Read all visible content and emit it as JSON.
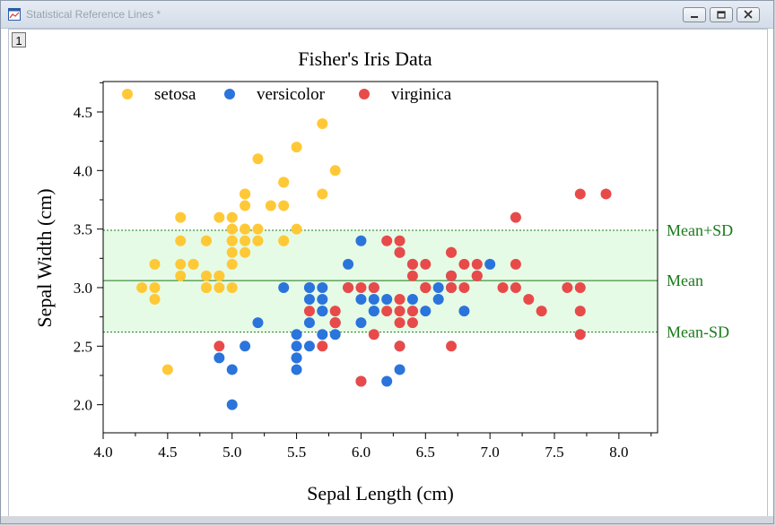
{
  "window": {
    "title": "Statistical Reference Lines *",
    "layer_label": "1",
    "icon": "graph-window-icon",
    "buttons": [
      "minimize-icon",
      "restore-icon",
      "close-icon"
    ]
  },
  "chart_data": {
    "type": "scatter",
    "title": "Fisher's Iris Data",
    "xlabel": "Sepal Length (cm)",
    "ylabel": "Sepal Width (cm)",
    "xlim": [
      4.0,
      8.3
    ],
    "ylim": [
      1.76,
      4.76
    ],
    "xticks": [
      "4.0",
      "4.5",
      "5.0",
      "5.5",
      "6.0",
      "6.5",
      "7.0",
      "7.5",
      "8.0"
    ],
    "yticks": [
      "2.0",
      "2.5",
      "3.0",
      "3.5",
      "4.0",
      "4.5"
    ],
    "legend_position": "top-left",
    "grid": false,
    "reference_lines": {
      "band_color": "#e6fbe6",
      "line_color": "#1a7a1a",
      "lines": [
        {
          "label": "Mean+SD",
          "y": 3.49,
          "style": "dotted"
        },
        {
          "label": "Mean",
          "y": 3.06,
          "style": "solid"
        },
        {
          "label": "Mean-SD",
          "y": 2.62,
          "style": "dotted"
        }
      ]
    },
    "series": [
      {
        "name": "setosa",
        "color": "#ffc836",
        "points": [
          [
            5.1,
            3.5
          ],
          [
            4.9,
            3.0
          ],
          [
            4.7,
            3.2
          ],
          [
            4.6,
            3.1
          ],
          [
            5.0,
            3.6
          ],
          [
            5.4,
            3.9
          ],
          [
            4.6,
            3.4
          ],
          [
            5.0,
            3.4
          ],
          [
            4.4,
            2.9
          ],
          [
            4.9,
            3.1
          ],
          [
            5.4,
            3.7
          ],
          [
            4.8,
            3.4
          ],
          [
            4.8,
            3.0
          ],
          [
            4.3,
            3.0
          ],
          [
            5.8,
            4.0
          ],
          [
            5.7,
            4.4
          ],
          [
            5.4,
            3.9
          ],
          [
            5.1,
            3.5
          ],
          [
            5.7,
            3.8
          ],
          [
            5.1,
            3.8
          ],
          [
            5.4,
            3.4
          ],
          [
            5.1,
            3.7
          ],
          [
            4.6,
            3.6
          ],
          [
            5.1,
            3.3
          ],
          [
            4.8,
            3.4
          ],
          [
            5.0,
            3.0
          ],
          [
            5.0,
            3.4
          ],
          [
            5.2,
            3.5
          ],
          [
            5.2,
            3.4
          ],
          [
            4.7,
            3.2
          ],
          [
            4.8,
            3.1
          ],
          [
            5.4,
            3.4
          ],
          [
            5.2,
            4.1
          ],
          [
            5.5,
            4.2
          ],
          [
            4.9,
            3.1
          ],
          [
            5.0,
            3.2
          ],
          [
            5.5,
            3.5
          ],
          [
            4.9,
            3.6
          ],
          [
            4.4,
            3.0
          ],
          [
            5.1,
            3.4
          ],
          [
            5.0,
            3.5
          ],
          [
            4.5,
            2.3
          ],
          [
            4.4,
            3.2
          ],
          [
            5.0,
            3.5
          ],
          [
            5.1,
            3.8
          ],
          [
            4.8,
            3.0
          ],
          [
            5.1,
            3.8
          ],
          [
            4.6,
            3.2
          ],
          [
            5.3,
            3.7
          ],
          [
            5.0,
            3.3
          ]
        ]
      },
      {
        "name": "versicolor",
        "color": "#2a74dc",
        "points": [
          [
            7.0,
            3.2
          ],
          [
            6.4,
            3.2
          ],
          [
            6.9,
            3.1
          ],
          [
            5.5,
            2.3
          ],
          [
            6.5,
            2.8
          ],
          [
            5.7,
            2.8
          ],
          [
            6.3,
            3.3
          ],
          [
            4.9,
            2.4
          ],
          [
            6.6,
            2.9
          ],
          [
            5.2,
            2.7
          ],
          [
            5.0,
            2.0
          ],
          [
            5.9,
            3.0
          ],
          [
            6.0,
            2.2
          ],
          [
            6.1,
            2.9
          ],
          [
            5.6,
            2.9
          ],
          [
            6.7,
            3.1
          ],
          [
            5.6,
            3.0
          ],
          [
            5.8,
            2.7
          ],
          [
            6.2,
            2.2
          ],
          [
            5.6,
            2.5
          ],
          [
            5.9,
            3.2
          ],
          [
            6.1,
            2.8
          ],
          [
            6.3,
            2.5
          ],
          [
            6.1,
            2.8
          ],
          [
            6.4,
            2.9
          ],
          [
            6.6,
            3.0
          ],
          [
            6.8,
            2.8
          ],
          [
            6.7,
            3.0
          ],
          [
            6.0,
            2.9
          ],
          [
            5.7,
            2.6
          ],
          [
            5.5,
            2.4
          ],
          [
            5.5,
            2.4
          ],
          [
            5.8,
            2.7
          ],
          [
            6.0,
            2.7
          ],
          [
            5.4,
            3.0
          ],
          [
            6.0,
            3.4
          ],
          [
            6.7,
            3.1
          ],
          [
            6.3,
            2.3
          ],
          [
            5.6,
            3.0
          ],
          [
            5.5,
            2.5
          ],
          [
            5.5,
            2.6
          ],
          [
            6.1,
            3.0
          ],
          [
            5.8,
            2.6
          ],
          [
            5.0,
            2.3
          ],
          [
            5.6,
            2.7
          ],
          [
            5.7,
            3.0
          ],
          [
            5.7,
            2.9
          ],
          [
            6.2,
            2.9
          ],
          [
            5.1,
            2.5
          ],
          [
            5.7,
            2.8
          ]
        ]
      },
      {
        "name": "virginica",
        "color": "#e84a4a",
        "points": [
          [
            6.3,
            3.3
          ],
          [
            5.8,
            2.7
          ],
          [
            7.1,
            3.0
          ],
          [
            6.3,
            2.9
          ],
          [
            6.5,
            3.0
          ],
          [
            7.6,
            3.0
          ],
          [
            4.9,
            2.5
          ],
          [
            7.3,
            2.9
          ],
          [
            6.7,
            2.5
          ],
          [
            7.2,
            3.6
          ],
          [
            6.5,
            3.2
          ],
          [
            6.4,
            2.7
          ],
          [
            6.8,
            3.0
          ],
          [
            5.7,
            2.5
          ],
          [
            5.8,
            2.8
          ],
          [
            6.4,
            3.2
          ],
          [
            6.5,
            3.0
          ],
          [
            7.7,
            3.8
          ],
          [
            7.7,
            2.6
          ],
          [
            6.0,
            2.2
          ],
          [
            6.9,
            3.2
          ],
          [
            5.6,
            2.8
          ],
          [
            7.7,
            2.8
          ],
          [
            6.3,
            2.7
          ],
          [
            6.7,
            3.3
          ],
          [
            7.2,
            3.2
          ],
          [
            6.2,
            2.8
          ],
          [
            6.1,
            3.0
          ],
          [
            6.4,
            2.8
          ],
          [
            7.2,
            3.0
          ],
          [
            7.4,
            2.8
          ],
          [
            7.9,
            3.8
          ],
          [
            6.4,
            2.8
          ],
          [
            6.3,
            2.8
          ],
          [
            6.1,
            2.6
          ],
          [
            7.7,
            3.0
          ],
          [
            6.3,
            3.4
          ],
          [
            6.4,
            3.1
          ],
          [
            6.0,
            3.0
          ],
          [
            6.9,
            3.1
          ],
          [
            6.7,
            3.1
          ],
          [
            6.9,
            3.1
          ],
          [
            5.8,
            2.7
          ],
          [
            6.8,
            3.2
          ],
          [
            6.7,
            3.3
          ],
          [
            6.7,
            3.0
          ],
          [
            6.3,
            2.5
          ],
          [
            6.5,
            3.0
          ],
          [
            6.2,
            3.4
          ],
          [
            5.9,
            3.0
          ]
        ]
      }
    ]
  }
}
